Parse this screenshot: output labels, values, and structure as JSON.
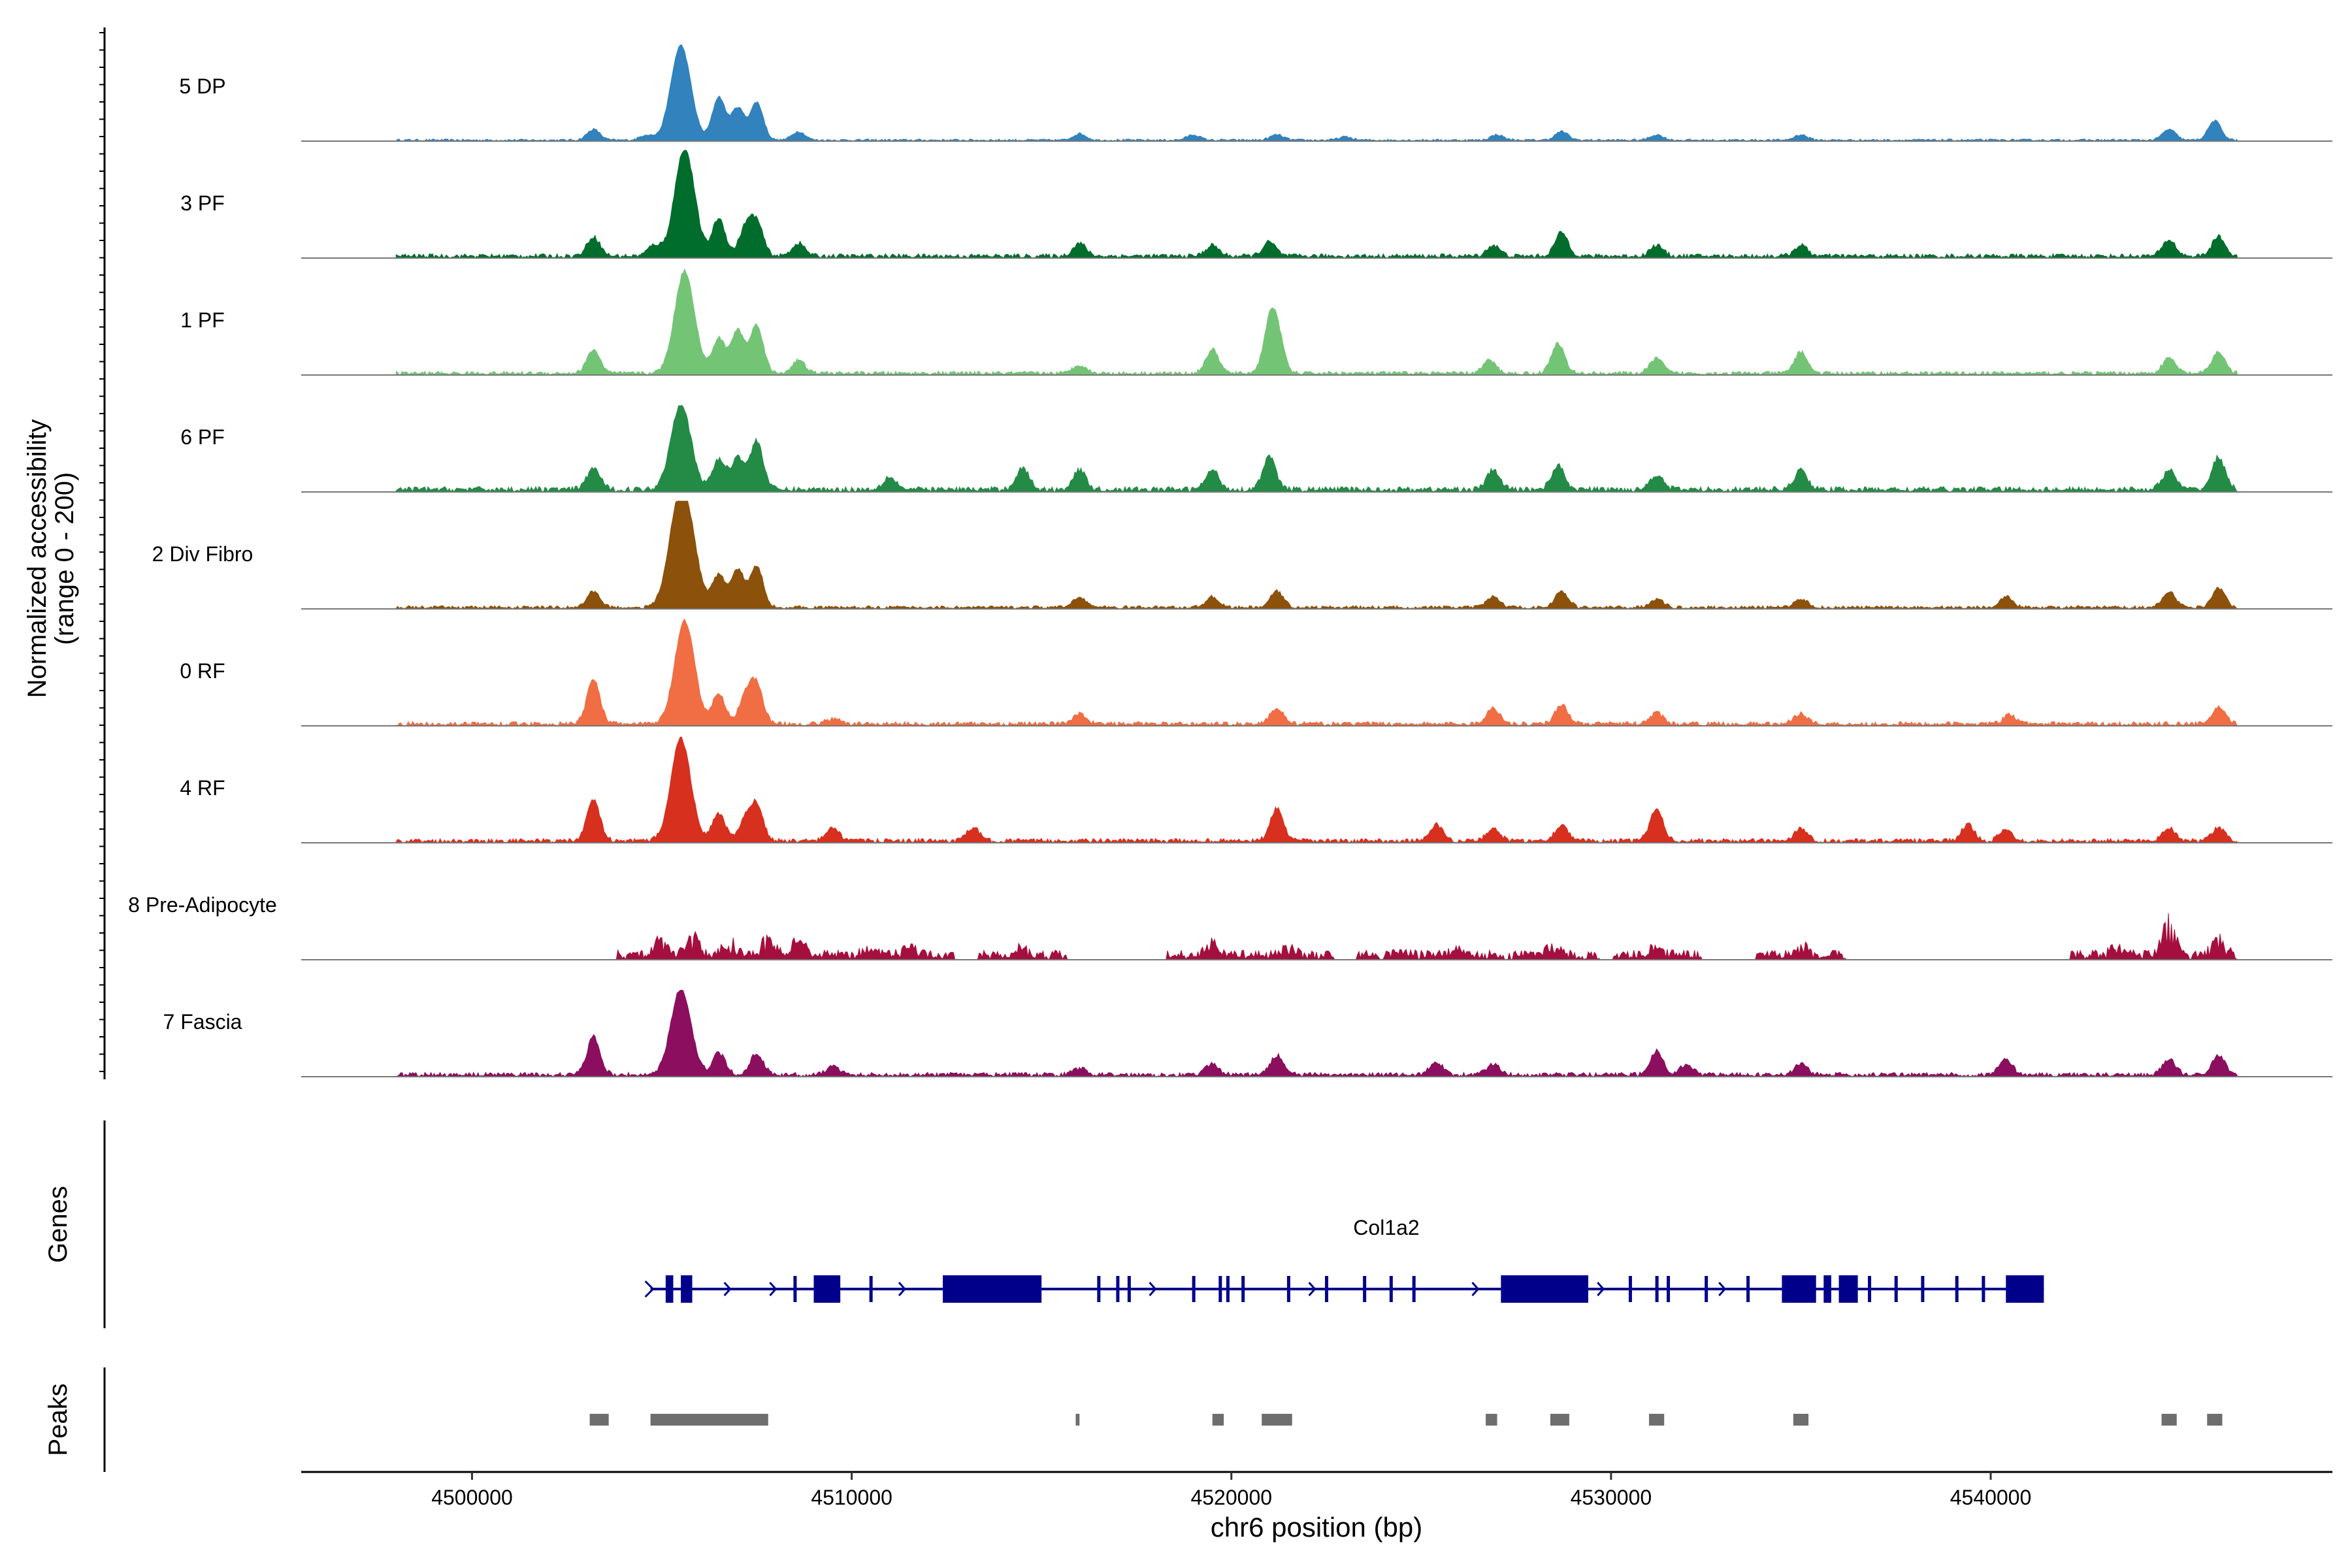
{
  "chart_data": {
    "type": "area",
    "title": "",
    "ylabel_line1": "Normalized accessibility",
    "ylabel_line2": "(range 0 - 200)",
    "xlabel": "chr6 position (bp)",
    "genes_label": "Genes",
    "peaks_label": "Peaks",
    "xlim": [
      4495500,
      4549000
    ],
    "ylim": [
      0,
      200
    ],
    "x_ticks": [
      4500000,
      4510000,
      4520000,
      4530000,
      4540000
    ],
    "x_tick_labels": [
      "4500000",
      "4510000",
      "4520000",
      "4530000",
      "4540000"
    ],
    "coverage_range": [
      4498000,
      4546500
    ],
    "tracks": [
      {
        "name": "5 DP",
        "color": "#3182BD",
        "peaks": [
          [
            4503200,
            0.1
          ],
          [
            4504600,
            0.05
          ],
          [
            4505500,
            0.88
          ],
          [
            4506500,
            0.4
          ],
          [
            4507000,
            0.3
          ],
          [
            4507500,
            0.35
          ],
          [
            4508600,
            0.08
          ],
          [
            4516000,
            0.06
          ],
          [
            4519000,
            0.05
          ],
          [
            4521200,
            0.05
          ],
          [
            4523000,
            0.03
          ],
          [
            4527000,
            0.05
          ],
          [
            4528700,
            0.08
          ],
          [
            4531200,
            0.05
          ],
          [
            4535000,
            0.05
          ],
          [
            4544700,
            0.1
          ],
          [
            4545900,
            0.18
          ]
        ],
        "noise": 0.02
      },
      {
        "name": "3 PF",
        "color": "#006D2C",
        "peaks": [
          [
            4503200,
            0.18
          ],
          [
            4504800,
            0.1
          ],
          [
            4505600,
            1.0
          ],
          [
            4506500,
            0.35
          ],
          [
            4507200,
            0.25
          ],
          [
            4507500,
            0.3
          ],
          [
            4508600,
            0.12
          ],
          [
            4516000,
            0.12
          ],
          [
            4519500,
            0.1
          ],
          [
            4521000,
            0.13
          ],
          [
            4526900,
            0.1
          ],
          [
            4528700,
            0.22
          ],
          [
            4531200,
            0.1
          ],
          [
            4535000,
            0.1
          ],
          [
            4544700,
            0.15
          ],
          [
            4546000,
            0.18
          ]
        ],
        "noise": 0.04
      },
      {
        "name": "1 PF",
        "color": "#74C476",
        "peaks": [
          [
            4503200,
            0.22
          ],
          [
            4505600,
            0.95
          ],
          [
            4506500,
            0.32
          ],
          [
            4507000,
            0.4
          ],
          [
            4507500,
            0.45
          ],
          [
            4508600,
            0.12
          ],
          [
            4516000,
            0.08
          ],
          [
            4519500,
            0.22
          ],
          [
            4521000,
            0.38
          ],
          [
            4521200,
            0.35
          ],
          [
            4526800,
            0.12
          ],
          [
            4528600,
            0.28
          ],
          [
            4531200,
            0.14
          ],
          [
            4535000,
            0.2
          ],
          [
            4544700,
            0.14
          ],
          [
            4546000,
            0.2
          ]
        ],
        "noise": 0.035
      },
      {
        "name": "6 PF",
        "color": "#238B45",
        "peaks": [
          [
            4503200,
            0.2
          ],
          [
            4505500,
            0.8
          ],
          [
            4506500,
            0.28
          ],
          [
            4507000,
            0.3
          ],
          [
            4507500,
            0.45
          ],
          [
            4511000,
            0.12
          ],
          [
            4514500,
            0.2
          ],
          [
            4516000,
            0.18
          ],
          [
            4519500,
            0.18
          ],
          [
            4521000,
            0.3
          ],
          [
            4526900,
            0.18
          ],
          [
            4528600,
            0.22
          ],
          [
            4531200,
            0.14
          ],
          [
            4535000,
            0.18
          ],
          [
            4544700,
            0.18
          ],
          [
            4546000,
            0.3
          ]
        ],
        "noise": 0.05
      },
      {
        "name": "2 Div Fibro",
        "color": "#8C510A",
        "peaks": [
          [
            4503200,
            0.15
          ],
          [
            4505400,
            0.72
          ],
          [
            4505700,
            0.6
          ],
          [
            4506500,
            0.3
          ],
          [
            4507000,
            0.35
          ],
          [
            4507500,
            0.38
          ],
          [
            4516000,
            0.1
          ],
          [
            4519500,
            0.1
          ],
          [
            4521200,
            0.15
          ],
          [
            4526900,
            0.1
          ],
          [
            4528700,
            0.15
          ],
          [
            4531200,
            0.08
          ],
          [
            4535000,
            0.08
          ],
          [
            4540400,
            0.1
          ],
          [
            4544700,
            0.15
          ],
          [
            4546000,
            0.18
          ]
        ],
        "noise": 0.03
      },
      {
        "name": "0 RF",
        "color": "#F16D43",
        "peaks": [
          [
            4503200,
            0.42
          ],
          [
            4505600,
            0.95
          ],
          [
            4506500,
            0.28
          ],
          [
            4507200,
            0.25
          ],
          [
            4507500,
            0.35
          ],
          [
            4509500,
            0.05
          ],
          [
            4516000,
            0.1
          ],
          [
            4521200,
            0.15
          ],
          [
            4526900,
            0.15
          ],
          [
            4528700,
            0.18
          ],
          [
            4531200,
            0.1
          ],
          [
            4535000,
            0.1
          ],
          [
            4540500,
            0.08
          ],
          [
            4546000,
            0.15
          ]
        ],
        "noise": 0.04
      },
      {
        "name": "4 RF",
        "color": "#D7301F",
        "peaks": [
          [
            4503200,
            0.38
          ],
          [
            4505500,
            0.95
          ],
          [
            4506500,
            0.25
          ],
          [
            4507200,
            0.18
          ],
          [
            4507500,
            0.32
          ],
          [
            4509500,
            0.12
          ],
          [
            4513200,
            0.12
          ],
          [
            4521200,
            0.3
          ],
          [
            4525400,
            0.15
          ],
          [
            4526900,
            0.12
          ],
          [
            4528700,
            0.15
          ],
          [
            4531200,
            0.3
          ],
          [
            4535000,
            0.12
          ],
          [
            4539400,
            0.15
          ],
          [
            4540400,
            0.1
          ],
          [
            4544700,
            0.12
          ],
          [
            4546000,
            0.12
          ]
        ],
        "noise": 0.04
      },
      {
        "name": "8 Pre-Adipocyte",
        "color": "#A50F3F",
        "peaks": [
          [
            4505000,
            0.18
          ],
          [
            4505800,
            0.2
          ],
          [
            4506800,
            0.15
          ],
          [
            4507800,
            0.18
          ],
          [
            4508600,
            0.15
          ],
          [
            4510500,
            0.1
          ],
          [
            4511500,
            0.08
          ],
          [
            4514500,
            0.08
          ],
          [
            4519500,
            0.12
          ],
          [
            4521500,
            0.08
          ],
          [
            4524500,
            0.05
          ],
          [
            4526000,
            0.08
          ],
          [
            4528500,
            0.1
          ],
          [
            4531200,
            0.08
          ],
          [
            4535000,
            0.1
          ],
          [
            4543300,
            0.08
          ],
          [
            4544700,
            0.35
          ],
          [
            4546000,
            0.2
          ]
        ],
        "noise": 0.05,
        "sparse": true
      },
      {
        "name": "7 Fascia",
        "color": "#8B0F5E",
        "peaks": [
          [
            4503200,
            0.35
          ],
          [
            4505500,
            0.8
          ],
          [
            4506500,
            0.2
          ],
          [
            4507500,
            0.2
          ],
          [
            4509500,
            0.08
          ],
          [
            4516000,
            0.06
          ],
          [
            4519500,
            0.1
          ],
          [
            4521200,
            0.18
          ],
          [
            4525400,
            0.12
          ],
          [
            4526900,
            0.1
          ],
          [
            4531200,
            0.22
          ],
          [
            4532000,
            0.1
          ],
          [
            4535000,
            0.1
          ],
          [
            4540400,
            0.14
          ],
          [
            4544700,
            0.14
          ],
          [
            4546000,
            0.18
          ]
        ],
        "noise": 0.04
      }
    ],
    "gene": {
      "name": "Col1a2",
      "color": "#00008B",
      "start": 4504700,
      "end": 4541400,
      "exons": [
        [
          4505100,
          4505300
        ],
        [
          4505500,
          4505800
        ],
        [
          4509000,
          4509700
        ],
        [
          4512400,
          4515000
        ],
        [
          4527100,
          4529400
        ],
        [
          4534500,
          4535400
        ],
        [
          4535600,
          4535800
        ],
        [
          4536000,
          4536500
        ],
        [
          4540400,
          4541400
        ]
      ],
      "small_exons": [
        4508500,
        4510500,
        4516500,
        4517000,
        4517300,
        4519000,
        4519700,
        4519900,
        4520300,
        4521500,
        4522500,
        4523500,
        4524200,
        4524800,
        4530500,
        4531200,
        4531500,
        4532500,
        4533600,
        4536800,
        4537500,
        4538200,
        4539100,
        4539800
      ],
      "arrows": [
        4506800,
        4508000,
        4511400,
        4518000,
        4522200,
        4526500,
        4529800,
        4533000
      ]
    },
    "peak_regions": [
      [
        4503100,
        4503600
      ],
      [
        4504700,
        4507800
      ],
      [
        4515900,
        4516000
      ],
      [
        4519500,
        4519800
      ],
      [
        4520800,
        4521600
      ],
      [
        4526700,
        4527000
      ],
      [
        4528400,
        4528900
      ],
      [
        4531000,
        4531400
      ],
      [
        4534800,
        4535200
      ],
      [
        4544500,
        4544900
      ],
      [
        4545700,
        4546100
      ]
    ]
  }
}
